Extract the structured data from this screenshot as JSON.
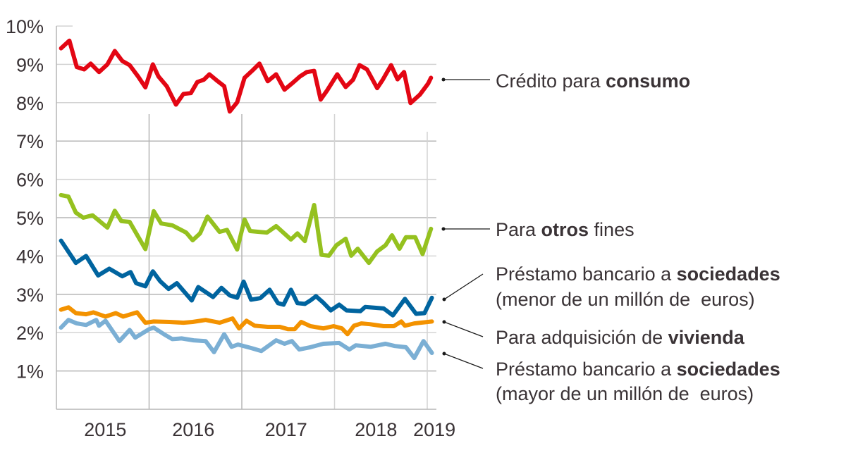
{
  "chart_data": {
    "type": "line",
    "title": "",
    "xlabel": "",
    "ylabel": "",
    "ylim": [
      0,
      10
    ],
    "xlim": [
      2015.0,
      2019.1
    ],
    "y_ticks": [
      "1%",
      "2%",
      "3%",
      "4%",
      "5%",
      "6%",
      "7%",
      "8%",
      "9%",
      "10%"
    ],
    "y_tick_values": [
      1,
      2,
      3,
      4,
      5,
      6,
      7,
      8,
      9,
      10
    ],
    "x_ticks": [
      {
        "label": "2015",
        "value": 2015.55
      },
      {
        "label": "2016",
        "value": 2016.5
      },
      {
        "label": "2017",
        "value": 2017.5
      },
      {
        "label": "2018",
        "value": 2018.47
      },
      {
        "label": "2019",
        "value": 2019.1
      }
    ],
    "year_boundaries": [
      2016,
      2017,
      2018,
      2019
    ],
    "grid": true,
    "legend": "direct-labels-right",
    "series": [
      {
        "name": "Crédito para consumo",
        "label_parts": [
          {
            "text": "Crédito para ",
            "bold": false
          },
          {
            "text": "consumo",
            "bold": true
          }
        ],
        "label_line2": "",
        "color": "#e30613",
        "x": [
          2015.05,
          2015.14,
          2015.22,
          2015.3,
          2015.37,
          2015.46,
          2015.55,
          2015.63,
          2015.71,
          2015.79,
          2015.88,
          2015.96,
          2016.04,
          2016.1,
          2016.19,
          2016.29,
          2016.37,
          2016.45,
          2016.52,
          2016.59,
          2016.65,
          2016.74,
          2016.81,
          2016.87,
          2016.95,
          2017.03,
          2017.11,
          2017.19,
          2017.28,
          2017.37,
          2017.46,
          2017.54,
          2017.63,
          2017.7,
          2017.78,
          2017.85,
          2017.92,
          2018.03,
          2018.12,
          2018.2,
          2018.27,
          2018.35,
          2018.46,
          2018.52,
          2018.61,
          2018.68,
          2018.75,
          2018.82,
          2018.92,
          2019.01,
          2019.04
        ],
        "values": [
          9.42,
          9.62,
          8.93,
          8.87,
          9.02,
          8.8,
          9.0,
          9.35,
          9.09,
          8.98,
          8.69,
          8.4,
          9.0,
          8.69,
          8.43,
          7.95,
          8.23,
          8.25,
          8.54,
          8.6,
          8.74,
          8.56,
          8.43,
          7.77,
          8.01,
          8.65,
          8.83,
          9.02,
          8.56,
          8.74,
          8.34,
          8.5,
          8.69,
          8.8,
          8.83,
          8.08,
          8.32,
          8.74,
          8.41,
          8.6,
          8.98,
          8.87,
          8.38,
          8.6,
          8.98,
          8.61,
          8.8,
          7.99,
          8.21,
          8.5,
          8.65
        ]
      },
      {
        "name": "Para otros fines",
        "label_parts": [
          {
            "text": "Para ",
            "bold": false
          },
          {
            "text": "otros",
            "bold": true
          },
          {
            "text": " fines",
            "bold": false
          }
        ],
        "label_line2": "",
        "color": "#95c11f",
        "x": [
          2015.05,
          2015.13,
          2015.21,
          2015.29,
          2015.39,
          2015.55,
          2015.63,
          2015.7,
          2015.79,
          2015.96,
          2016.05,
          2016.13,
          2016.25,
          2016.4,
          2016.47,
          2016.55,
          2016.63,
          2016.76,
          2016.84,
          2016.95,
          2017.03,
          2017.09,
          2017.27,
          2017.37,
          2017.53,
          2017.6,
          2017.68,
          2017.78,
          2017.86,
          2017.94,
          2018.02,
          2018.12,
          2018.18,
          2018.25,
          2018.37,
          2018.46,
          2018.55,
          2018.62,
          2018.7,
          2018.77,
          2018.87,
          2018.95,
          2019.04
        ],
        "values": [
          5.59,
          5.55,
          5.13,
          5.0,
          5.06,
          4.74,
          5.18,
          4.91,
          4.89,
          4.18,
          5.17,
          4.85,
          4.8,
          4.61,
          4.41,
          4.59,
          5.03,
          4.63,
          4.68,
          4.17,
          4.95,
          4.65,
          4.61,
          4.78,
          4.43,
          4.59,
          4.39,
          5.33,
          4.03,
          4.01,
          4.28,
          4.45,
          4.01,
          4.19,
          3.82,
          4.12,
          4.28,
          4.54,
          4.19,
          4.49,
          4.49,
          4.05,
          4.71
        ]
      },
      {
        "name": "Préstamo bancario a sociedades (menor de un millón de euros)",
        "label_parts": [
          {
            "text": "Préstamo bancario a ",
            "bold": false
          },
          {
            "text": "sociedades",
            "bold": true
          }
        ],
        "label_line2": "(menor de un millón de  euros)",
        "color": "#00649f",
        "x": [
          2015.05,
          2015.21,
          2015.32,
          2015.45,
          2015.57,
          2015.71,
          2015.8,
          2015.86,
          2015.96,
          2016.04,
          2016.12,
          2016.21,
          2016.3,
          2016.46,
          2016.53,
          2016.69,
          2016.78,
          2016.87,
          2016.95,
          2017.02,
          2017.1,
          2017.2,
          2017.3,
          2017.39,
          2017.45,
          2017.53,
          2017.6,
          2017.68,
          2017.74,
          2017.8,
          2017.88,
          2017.96,
          2018.05,
          2018.13,
          2018.28,
          2018.33,
          2018.53,
          2018.63,
          2018.76,
          2018.88,
          2018.97,
          2019.05
        ],
        "values": [
          4.4,
          3.82,
          4.0,
          3.49,
          3.67,
          3.47,
          3.58,
          3.29,
          3.21,
          3.6,
          3.34,
          3.14,
          3.29,
          2.84,
          3.19,
          2.93,
          3.17,
          2.97,
          2.91,
          3.33,
          2.86,
          2.9,
          3.12,
          2.77,
          2.73,
          3.12,
          2.77,
          2.75,
          2.84,
          2.95,
          2.78,
          2.58,
          2.73,
          2.58,
          2.56,
          2.67,
          2.63,
          2.45,
          2.88,
          2.49,
          2.51,
          2.91
        ]
      },
      {
        "name": "Para adquisición de vivienda",
        "label_parts": [
          {
            "text": "Para adquisición de ",
            "bold": false
          },
          {
            "text": "vivienda",
            "bold": true
          }
        ],
        "label_line2": "",
        "color": "#f39200",
        "x": [
          2015.05,
          2015.13,
          2015.21,
          2015.32,
          2015.4,
          2015.53,
          2015.64,
          2015.72,
          2015.87,
          2015.96,
          2016.05,
          2016.22,
          2016.37,
          2016.47,
          2016.61,
          2016.76,
          2016.9,
          2016.97,
          2017.05,
          2017.14,
          2017.28,
          2017.41,
          2017.5,
          2017.57,
          2017.64,
          2017.74,
          2017.88,
          2017.99,
          2018.08,
          2018.14,
          2018.21,
          2018.29,
          2018.38,
          2018.53,
          2018.64,
          2018.72,
          2018.76,
          2018.86,
          2019.05
        ],
        "values": [
          2.6,
          2.66,
          2.51,
          2.48,
          2.53,
          2.42,
          2.51,
          2.42,
          2.53,
          2.26,
          2.29,
          2.28,
          2.26,
          2.28,
          2.33,
          2.26,
          2.37,
          2.11,
          2.31,
          2.18,
          2.15,
          2.15,
          2.09,
          2.09,
          2.28,
          2.17,
          2.11,
          2.17,
          2.11,
          1.96,
          2.18,
          2.24,
          2.22,
          2.17,
          2.17,
          2.29,
          2.18,
          2.24,
          2.29
        ]
      },
      {
        "name": "Préstamo bancario a sociedades (mayor de un millón de euros)",
        "label_parts": [
          {
            "text": "Préstamo bancario a ",
            "bold": false
          },
          {
            "text": "sociedades",
            "bold": true
          }
        ],
        "label_line2": "(mayor de un millón de  euros)",
        "color": "#7bafd4",
        "x": [
          2015.05,
          2015.13,
          2015.22,
          2015.32,
          2015.43,
          2015.46,
          2015.53,
          2015.68,
          2015.79,
          2015.85,
          2016.0,
          2016.05,
          2016.16,
          2016.25,
          2016.35,
          2016.48,
          2016.61,
          2016.7,
          2016.81,
          2016.89,
          2016.96,
          2017.1,
          2017.21,
          2017.37,
          2017.46,
          2017.54,
          2017.62,
          2017.74,
          2017.88,
          2018.05,
          2018.16,
          2018.23,
          2018.39,
          2018.55,
          2018.65,
          2018.77,
          2018.86,
          2018.96,
          2019.05
        ],
        "values": [
          2.13,
          2.33,
          2.24,
          2.2,
          2.33,
          2.18,
          2.31,
          1.78,
          2.07,
          1.87,
          2.09,
          2.13,
          1.96,
          1.83,
          1.85,
          1.8,
          1.78,
          1.49,
          1.96,
          1.63,
          1.69,
          1.6,
          1.52,
          1.8,
          1.71,
          1.78,
          1.56,
          1.62,
          1.71,
          1.73,
          1.56,
          1.67,
          1.63,
          1.71,
          1.65,
          1.62,
          1.34,
          1.78,
          1.47
        ]
      }
    ]
  }
}
